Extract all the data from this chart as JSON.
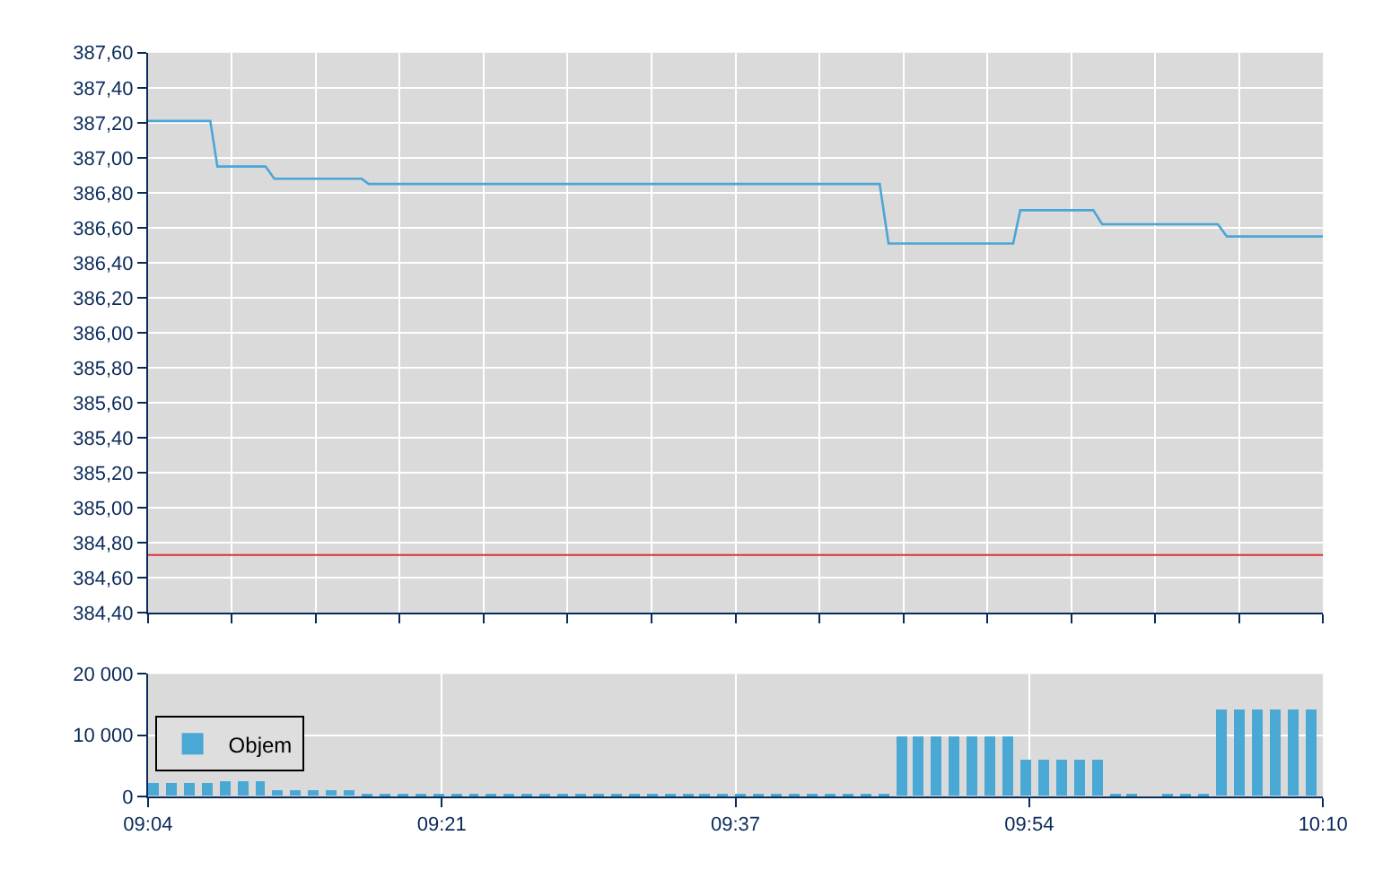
{
  "chart_data": [
    {
      "type": "line",
      "xlim": [
        9.0667,
        10.1667
      ],
      "ylim": [
        384.4,
        387.6
      ],
      "x": [
        9.0667,
        9.125,
        9.1317,
        9.1767,
        9.185,
        9.2667,
        9.2733,
        9.7517,
        9.76,
        9.8767,
        9.8833,
        9.9517,
        9.96,
        10.0683,
        10.0767,
        10.1667
      ],
      "series": [
        {
          "color": "#4aa6d6",
          "values": [
            387.21,
            387.21,
            386.95,
            386.95,
            386.88,
            386.88,
            386.85,
            386.85,
            386.51,
            386.51,
            386.7,
            386.7,
            386.62,
            386.62,
            386.55,
            386.55
          ]
        }
      ],
      "yticks": [
        {
          "value": 384.4,
          "label": "384,40"
        },
        {
          "value": 384.6,
          "label": "384,60"
        },
        {
          "value": 384.8,
          "label": "384,80"
        },
        {
          "value": 385.0,
          "label": "385,00"
        },
        {
          "value": 385.2,
          "label": "385,20"
        },
        {
          "value": 385.4,
          "label": "385,40"
        },
        {
          "value": 385.6,
          "label": "385,60"
        },
        {
          "value": 385.8,
          "label": "385,80"
        },
        {
          "value": 386.0,
          "label": "386,00"
        },
        {
          "value": 386.2,
          "label": "386,20"
        },
        {
          "value": 386.4,
          "label": "386,40"
        },
        {
          "value": 386.6,
          "label": "386,60"
        },
        {
          "value": 386.8,
          "label": "386,80"
        },
        {
          "value": 387.0,
          "label": "387,00"
        },
        {
          "value": 387.2,
          "label": "387,20"
        },
        {
          "value": 387.4,
          "label": "387,40"
        },
        {
          "value": 387.6,
          "label": "387,60"
        }
      ],
      "xticks": [
        {
          "value": 9.0667,
          "label": null
        },
        {
          "value": 9.1452,
          "label": null
        },
        {
          "value": 9.2238,
          "label": null
        },
        {
          "value": 9.3024,
          "label": null
        },
        {
          "value": 9.381,
          "label": null
        },
        {
          "value": 9.4595,
          "label": null
        },
        {
          "value": 9.5381,
          "label": null
        },
        {
          "value": 9.6167,
          "label": null
        },
        {
          "value": 9.6952,
          "label": null
        },
        {
          "value": 9.7738,
          "label": null
        },
        {
          "value": 9.8524,
          "label": null
        },
        {
          "value": 9.931,
          "label": null
        },
        {
          "value": 10.0095,
          "label": null
        },
        {
          "value": 10.0881,
          "label": null
        },
        {
          "value": 10.1667,
          "label": null
        }
      ],
      "ref_lines": [
        {
          "axis": "y",
          "value": 384.73,
          "color": "#e03030"
        }
      ],
      "grid": true,
      "tick_labels": "y",
      "legend": false
    },
    {
      "type": "bar",
      "xlim": [
        9.0667,
        10.1667
      ],
      "ylim": [
        0,
        20000
      ],
      "x": [
        9.0667,
        9.0833,
        9.1,
        9.1167,
        9.1333,
        9.15,
        9.1667,
        9.1833,
        9.2,
        9.2167,
        9.2333,
        9.25,
        9.2667,
        9.2833,
        9.3,
        9.3167,
        9.3333,
        9.35,
        9.3667,
        9.3833,
        9.4,
        9.4167,
        9.4333,
        9.45,
        9.4667,
        9.4833,
        9.5,
        9.5167,
        9.5333,
        9.55,
        9.5667,
        9.5833,
        9.6,
        9.6167,
        9.6333,
        9.65,
        9.6667,
        9.6833,
        9.7,
        9.7167,
        9.7333,
        9.75,
        9.7667,
        9.7833,
        9.8,
        9.8167,
        9.8333,
        9.85,
        9.8667,
        9.8833,
        9.9,
        9.9167,
        9.9333,
        9.95,
        9.9667,
        9.9833,
        10.0,
        10.0167,
        10.0333,
        10.05,
        10.0667,
        10.0833,
        10.1,
        10.1167,
        10.1333,
        10.15
      ],
      "series": [
        {
          "name": "Objem",
          "color": "#4aa8d4",
          "values": [
            2000,
            2000,
            2000,
            2000,
            2400,
            2400,
            2400,
            900,
            900,
            900,
            900,
            900,
            200,
            200,
            200,
            200,
            200,
            200,
            200,
            200,
            200,
            200,
            200,
            200,
            200,
            200,
            200,
            200,
            200,
            200,
            200,
            200,
            200,
            200,
            200,
            200,
            200,
            200,
            200,
            200,
            200,
            200,
            9800,
            9800,
            9800,
            9800,
            9800,
            9800,
            9800,
            5800,
            5800,
            5800,
            5800,
            5800,
            200,
            200,
            null,
            200,
            200,
            200,
            14000,
            14000,
            14000,
            14000,
            14000,
            14000
          ]
        }
      ],
      "yticks": [
        {
          "value": 0,
          "label": "0"
        },
        {
          "value": 10000,
          "label": "10 000"
        },
        {
          "value": 20000,
          "label": "20 000"
        }
      ],
      "xticks": [
        {
          "value": 9.0667,
          "label": "09:04"
        },
        {
          "value": 9.3417,
          "label": "09:21"
        },
        {
          "value": 9.6167,
          "label": "09:37"
        },
        {
          "value": 9.8917,
          "label": "09:54"
        },
        {
          "value": 10.1667,
          "label": "10:10"
        }
      ],
      "grid": true,
      "legend": "left"
    }
  ]
}
